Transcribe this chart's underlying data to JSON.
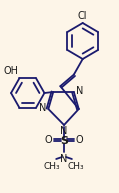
{
  "bg_color": "#fdf5e8",
  "line_color": "#1a1a6e",
  "text_color": "#1a1a1a",
  "lw": 1.3,
  "font_size": 7.0,
  "figsize": [
    1.19,
    1.93
  ],
  "dpi": 100,
  "xlim": [
    0,
    119
  ],
  "ylim": [
    0,
    193
  ]
}
